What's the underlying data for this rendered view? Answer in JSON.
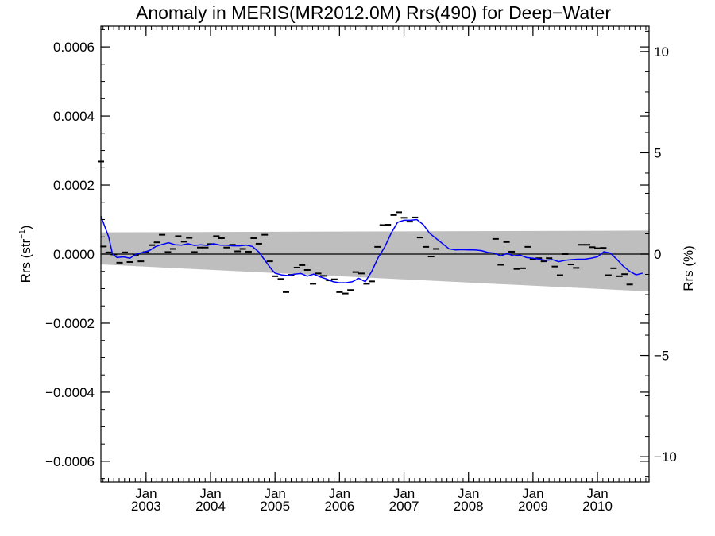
{
  "chart_data": {
    "type": "line",
    "title": "Anomaly in MERIS(MR2012.0M) Rrs(490) for Deep−Water",
    "ylabel_left": "Rrs (str",
    "ylabel_left_sup": "−1",
    "ylabel_left_close": ")",
    "ylabel_right": "Rrs (%)",
    "xlabel": "",
    "x_range": [
      2002.3,
      2010.8
    ],
    "ylim_left": [
      -0.00066,
      0.00066
    ],
    "ylim_right": [
      -11.25,
      11.25
    ],
    "y_ticks_left": [
      {
        "value": 0.0006,
        "label": "0.0006"
      },
      {
        "value": 0.0004,
        "label": "0.0004"
      },
      {
        "value": 0.0002,
        "label": "0.0002"
      },
      {
        "value": 0.0,
        "label": "0.0000"
      },
      {
        "value": -0.0002,
        "label": "−0.0002"
      },
      {
        "value": -0.0004,
        "label": "−0.0004"
      },
      {
        "value": -0.0006,
        "label": "−0.0006"
      }
    ],
    "y_ticks_right": [
      {
        "value": 10,
        "label": "10"
      },
      {
        "value": 5,
        "label": "5"
      },
      {
        "value": 0,
        "label": "0"
      },
      {
        "value": -5,
        "label": "−5"
      },
      {
        "value": -10,
        "label": "−10"
      }
    ],
    "x_ticks": [
      {
        "value": 2003.0,
        "month": "Jan",
        "year": "2003"
      },
      {
        "value": 2004.0,
        "month": "Jan",
        "year": "2004"
      },
      {
        "value": 2005.0,
        "month": "Jan",
        "year": "2005"
      },
      {
        "value": 2006.0,
        "month": "Jan",
        "year": "2006"
      },
      {
        "value": 2007.0,
        "month": "Jan",
        "year": "2007"
      },
      {
        "value": 2008.0,
        "month": "Jan",
        "year": "2008"
      },
      {
        "value": 2009.0,
        "month": "Jan",
        "year": "2009"
      },
      {
        "value": 2010.0,
        "month": "Jan",
        "year": "2010"
      }
    ],
    "uncertainty_band": {
      "upper": [
        [
          2002.3,
          6.3e-05
        ],
        [
          2010.8,
          6.8e-05
        ]
      ],
      "lower": [
        [
          2002.3,
          -3e-05
        ],
        [
          2010.8,
          -0.000108
        ]
      ],
      "color": "#bebebe"
    },
    "zero_line": true,
    "series": [
      {
        "kind": "monthly_points",
        "color": "#000000",
        "points": [
          [
            2002.3,
            0.000268
          ],
          [
            2002.34,
            2.2e-05
          ],
          [
            2002.42,
            5e-06
          ],
          [
            2002.5,
            -1e-06
          ],
          [
            2002.59,
            -2.5e-05
          ],
          [
            2002.67,
            5e-06
          ],
          [
            2002.75,
            -2.3e-05
          ],
          [
            2002.84,
            -2e-06
          ],
          [
            2002.92,
            -2.1e-05
          ],
          [
            2003.0,
            6e-06
          ],
          [
            2003.09,
            2.6e-05
          ],
          [
            2003.17,
            3.4e-05
          ],
          [
            2003.25,
            5.6e-05
          ],
          [
            2003.34,
            6e-06
          ],
          [
            2003.42,
            1.5e-05
          ],
          [
            2003.5,
            5.2e-05
          ],
          [
            2003.59,
            3.6e-05
          ],
          [
            2003.67,
            4.7e-05
          ],
          [
            2003.75,
            6e-06
          ],
          [
            2003.84,
            1.9e-05
          ],
          [
            2003.92,
            1.9e-05
          ],
          [
            2004.0,
            2.9e-05
          ],
          [
            2004.09,
            5.2e-05
          ],
          [
            2004.17,
            4.6e-05
          ],
          [
            2004.25,
            1.9e-05
          ],
          [
            2004.34,
            2.7e-05
          ],
          [
            2004.42,
            8e-06
          ],
          [
            2004.5,
            1.5e-05
          ],
          [
            2004.59,
            7e-06
          ],
          [
            2004.67,
            4.6e-05
          ],
          [
            2004.75,
            3e-05
          ],
          [
            2004.84,
            5.6e-05
          ],
          [
            2004.92,
            -2.1e-05
          ],
          [
            2005.0,
            -6.4e-05
          ],
          [
            2005.09,
            -7.2e-05
          ],
          [
            2005.17,
            -0.00011
          ],
          [
            2005.25,
            -6e-05
          ],
          [
            2005.34,
            -3.9e-05
          ],
          [
            2005.42,
            -3.2e-05
          ],
          [
            2005.5,
            -4.6e-05
          ],
          [
            2005.59,
            -8.6e-05
          ],
          [
            2005.67,
            -5.6e-05
          ],
          [
            2005.75,
            -6.3e-05
          ],
          [
            2005.84,
            -7.6e-05
          ],
          [
            2005.92,
            -7.3e-05
          ],
          [
            2006.0,
            -0.00011
          ],
          [
            2006.09,
            -0.000114
          ],
          [
            2006.17,
            -0.000104
          ],
          [
            2006.25,
            -5.2e-05
          ],
          [
            2006.34,
            -5.6e-05
          ],
          [
            2006.42,
            -8.6e-05
          ],
          [
            2006.5,
            -7.9e-05
          ],
          [
            2006.59,
            2.1e-05
          ],
          [
            2006.67,
            8.4e-05
          ],
          [
            2006.75,
            8.5e-05
          ],
          [
            2006.84,
            0.000113
          ],
          [
            2006.92,
            0.000121
          ],
          [
            2007.0,
            0.000105
          ],
          [
            2007.09,
            9.4e-05
          ],
          [
            2007.17,
            0.000106
          ],
          [
            2007.25,
            4.8e-05
          ],
          [
            2007.34,
            2.1e-05
          ],
          [
            2007.42,
            -7e-06
          ],
          [
            2007.5,
            1.5e-05
          ],
          [
            2008.42,
            4.4e-05
          ],
          [
            2008.5,
            -3.1e-05
          ],
          [
            2008.59,
            3.5e-05
          ],
          [
            2008.67,
            7e-06
          ],
          [
            2008.75,
            -4.3e-05
          ],
          [
            2008.84,
            -4.1e-05
          ],
          [
            2008.92,
            2.1e-05
          ],
          [
            2009.0,
            -1.5e-05
          ],
          [
            2009.09,
            -1.2e-05
          ],
          [
            2009.17,
            -2.1e-05
          ],
          [
            2009.25,
            -1.2e-05
          ],
          [
            2009.34,
            -3.6e-05
          ],
          [
            2009.42,
            -6.1e-05
          ],
          [
            2009.5,
            0.0
          ],
          [
            2009.59,
            -3e-05
          ],
          [
            2009.67,
            -4e-05
          ],
          [
            2009.75,
            2.7e-05
          ],
          [
            2009.84,
            2.7e-05
          ],
          [
            2009.92,
            2e-05
          ],
          [
            2010.0,
            1.7e-05
          ],
          [
            2010.09,
            1.8e-05
          ],
          [
            2010.17,
            -6.1e-05
          ],
          [
            2010.25,
            -4.1e-05
          ],
          [
            2010.34,
            -6.4e-05
          ],
          [
            2010.42,
            -5.8e-05
          ],
          [
            2010.5,
            -8.8e-05
          ]
        ]
      },
      {
        "kind": "running_mean",
        "color": "#0000ff",
        "points": [
          [
            2002.3,
            0.00011
          ],
          [
            2002.35,
            8.5e-05
          ],
          [
            2002.42,
            5e-05
          ],
          [
            2002.48,
            0.0
          ],
          [
            2002.55,
            -1e-05
          ],
          [
            2002.65,
            -8e-06
          ],
          [
            2002.75,
            -1.2e-05
          ],
          [
            2002.85,
            0.0
          ],
          [
            2002.95,
            5e-06
          ],
          [
            2003.05,
            1e-05
          ],
          [
            2003.15,
            2.2e-05
          ],
          [
            2003.25,
            2.8e-05
          ],
          [
            2003.35,
            3.3e-05
          ],
          [
            2003.45,
            2.7e-05
          ],
          [
            2003.55,
            2.6e-05
          ],
          [
            2003.65,
            3e-05
          ],
          [
            2003.75,
            2.5e-05
          ],
          [
            2003.85,
            2.7e-05
          ],
          [
            2003.95,
            2.5e-05
          ],
          [
            2004.05,
            3e-05
          ],
          [
            2004.15,
            2.6e-05
          ],
          [
            2004.25,
            2.6e-05
          ],
          [
            2004.35,
            2.4e-05
          ],
          [
            2004.45,
            2.4e-05
          ],
          [
            2004.55,
            2.6e-05
          ],
          [
            2004.65,
            2.2e-05
          ],
          [
            2004.75,
            6e-06
          ],
          [
            2004.85,
            -2e-05
          ],
          [
            2004.95,
            -4.5e-05
          ],
          [
            2005.0,
            -5.5e-05
          ],
          [
            2005.1,
            -6e-05
          ],
          [
            2005.2,
            -6.2e-05
          ],
          [
            2005.3,
            -5.8e-05
          ],
          [
            2005.4,
            -5.6e-05
          ],
          [
            2005.5,
            -6.4e-05
          ],
          [
            2005.6,
            -5.8e-05
          ],
          [
            2005.7,
            -6.6e-05
          ],
          [
            2005.8,
            -7.2e-05
          ],
          [
            2005.9,
            -8e-05
          ],
          [
            2006.0,
            -8.3e-05
          ],
          [
            2006.1,
            -8.3e-05
          ],
          [
            2006.2,
            -8e-05
          ],
          [
            2006.3,
            -7e-05
          ],
          [
            2006.4,
            -8e-05
          ],
          [
            2006.5,
            -5e-05
          ],
          [
            2006.6,
            -1e-05
          ],
          [
            2006.7,
            2e-05
          ],
          [
            2006.8,
            6e-05
          ],
          [
            2006.9,
            9.2e-05
          ],
          [
            2007.0,
            9.8e-05
          ],
          [
            2007.1,
            9.8e-05
          ],
          [
            2007.2,
            0.0001
          ],
          [
            2007.3,
            8.5e-05
          ],
          [
            2007.4,
            6e-05
          ],
          [
            2007.5,
            4.5e-05
          ],
          [
            2007.6,
            3e-05
          ],
          [
            2007.7,
            1.5e-05
          ],
          [
            2007.8,
            1.2e-05
          ],
          [
            2007.9,
            1.3e-05
          ],
          [
            2008.0,
            1.2e-05
          ],
          [
            2008.1,
            1.2e-05
          ],
          [
            2008.2,
            1e-05
          ],
          [
            2008.3,
            5e-06
          ],
          [
            2008.4,
            3e-06
          ],
          [
            2008.5,
            -5e-06
          ],
          [
            2008.6,
            2e-06
          ],
          [
            2008.7,
            -5e-06
          ],
          [
            2008.8,
            -3e-06
          ],
          [
            2008.9,
            -1e-05
          ],
          [
            2009.0,
            -1.2e-05
          ],
          [
            2009.1,
            -1.5e-05
          ],
          [
            2009.2,
            -1.8e-05
          ],
          [
            2009.3,
            -1.6e-05
          ],
          [
            2009.4,
            -2.2e-05
          ],
          [
            2009.5,
            -1.8e-05
          ],
          [
            2009.6,
            -1.6e-05
          ],
          [
            2009.7,
            -1.5e-05
          ],
          [
            2009.8,
            -1.5e-05
          ],
          [
            2009.9,
            -1.2e-05
          ],
          [
            2010.0,
            -8e-06
          ],
          [
            2010.1,
            7e-06
          ],
          [
            2010.2,
            3e-06
          ],
          [
            2010.3,
            -1.5e-05
          ],
          [
            2010.4,
            -3.5e-05
          ],
          [
            2010.5,
            -5e-05
          ],
          [
            2010.6,
            -6e-05
          ],
          [
            2010.7,
            -5.5e-05
          ]
        ]
      }
    ]
  }
}
